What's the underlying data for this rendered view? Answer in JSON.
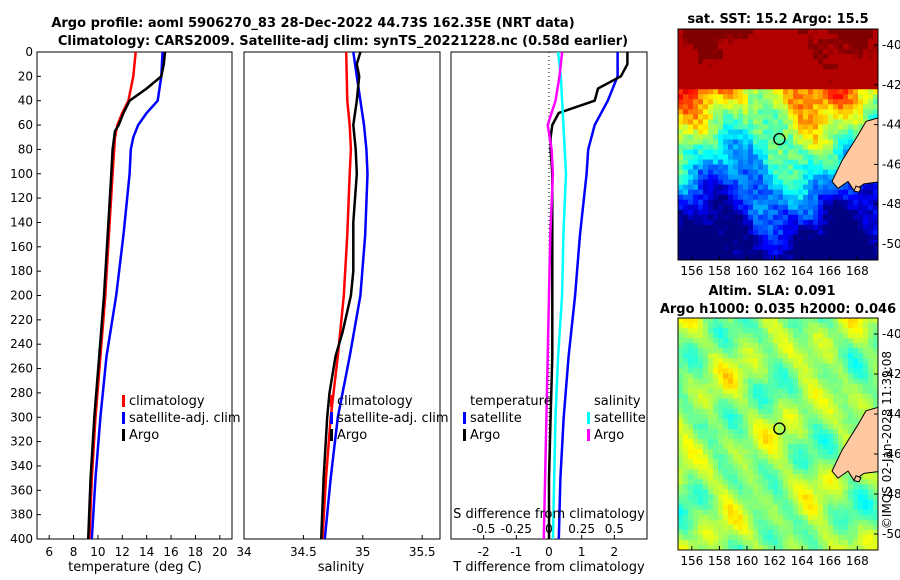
{
  "title": {
    "line1": "Argo profile: aoml 5906270_83 28-Dec-2022 44.73S 162.35E (NRT data)",
    "line2": "Climatology: CARS2009. Satellite-adj clim: synTS_20221228.nc (0.58d earlier)"
  },
  "sst_map_title": "sat. SST: 15.2 Argo: 15.5",
  "sla_map_title_line1": "Altim. SLA: 0.091",
  "sla_map_title_line2": "Argo h1000: 0.035 h2000: 0.046",
  "side_label": "©IMOS 02-Jan-2023 11:39:08",
  "colors": {
    "climatology": "#ff0000",
    "satellite": "#0000ff",
    "argo": "#000000",
    "salinity_satellite": "#00ffff",
    "salinity_argo": "#ff00ff",
    "land": "#ffc8a0"
  },
  "chart_data": [
    {
      "type": "line",
      "name": "temperature-profile",
      "xlabel": "temperature (deg C)",
      "ylabel": "",
      "xlim": [
        5,
        21
      ],
      "ylim": [
        0,
        400
      ],
      "xticks": [
        6,
        8,
        10,
        12,
        14,
        16,
        18,
        20
      ],
      "yticks": [
        0,
        20,
        40,
        60,
        80,
        100,
        120,
        140,
        160,
        180,
        200,
        220,
        240,
        260,
        280,
        300,
        320,
        340,
        360,
        380,
        400
      ],
      "legend": [
        "climatology",
        "satellite-adj. clim",
        "Argo"
      ],
      "series": [
        {
          "name": "climatology",
          "color": "#ff0000",
          "depth": [
            0,
            20,
            40,
            50,
            60,
            70,
            100,
            150,
            200,
            250,
            300,
            350,
            400
          ],
          "values": [
            13.1,
            12.9,
            12.5,
            12.0,
            11.6,
            11.4,
            11.2,
            10.9,
            10.6,
            10.2,
            9.8,
            9.5,
            9.3
          ]
        },
        {
          "name": "satellite-adj. clim",
          "color": "#0000ff",
          "depth": [
            0,
            20,
            40,
            50,
            60,
            70,
            80,
            100,
            150,
            200,
            250,
            300,
            350,
            400
          ],
          "values": [
            15.3,
            15.2,
            14.9,
            14.0,
            13.3,
            12.9,
            12.7,
            12.6,
            12.1,
            11.5,
            10.7,
            10.2,
            9.8,
            9.5
          ]
        },
        {
          "name": "Argo",
          "color": "#000000",
          "depth": [
            0,
            10,
            20,
            30,
            40,
            50,
            60,
            65,
            80,
            100,
            150,
            200,
            250,
            300,
            350,
            400
          ],
          "values": [
            15.5,
            15.4,
            15.2,
            14.0,
            12.6,
            12.1,
            11.7,
            11.4,
            11.2,
            11.1,
            10.8,
            10.5,
            10.1,
            9.7,
            9.4,
            9.2
          ]
        }
      ]
    },
    {
      "type": "line",
      "name": "salinity-profile",
      "xlabel": "salinity",
      "xlim": [
        34.0,
        35.65
      ],
      "ylim": [
        0,
        400
      ],
      "xticks": [
        34,
        34.5,
        35,
        35.5
      ],
      "legend": [
        "climatology",
        "satellite-adj. clim",
        "Argo"
      ],
      "series": [
        {
          "name": "climatology",
          "color": "#ff0000",
          "depth": [
            0,
            40,
            60,
            80,
            100,
            150,
            200,
            250,
            300,
            350,
            400
          ],
          "values": [
            34.86,
            34.87,
            34.89,
            34.9,
            34.89,
            34.87,
            34.84,
            34.79,
            34.73,
            34.69,
            34.66
          ]
        },
        {
          "name": "satellite-adj. clim",
          "color": "#0000ff",
          "depth": [
            0,
            20,
            40,
            60,
            80,
            100,
            150,
            200,
            250,
            300,
            350,
            400
          ],
          "values": [
            34.92,
            34.95,
            34.98,
            35.01,
            35.03,
            35.04,
            35.02,
            34.98,
            34.89,
            34.79,
            34.73,
            34.68
          ]
        },
        {
          "name": "Argo",
          "color": "#000000",
          "depth": [
            0,
            10,
            20,
            40,
            60,
            80,
            100,
            140,
            180,
            200,
            230,
            250,
            280,
            300,
            350,
            400
          ],
          "values": [
            34.98,
            34.95,
            34.97,
            34.95,
            34.92,
            34.94,
            34.95,
            34.92,
            34.92,
            34.9,
            34.83,
            34.77,
            34.72,
            34.7,
            34.67,
            34.65
          ]
        }
      ]
    },
    {
      "type": "line",
      "name": "difference-profile",
      "xlabel": "T difference from climatology",
      "toplabel": "S difference from climatology",
      "xlim": [
        -3,
        3
      ],
      "ylim": [
        0,
        400
      ],
      "xticks": [
        -2,
        -1,
        0,
        1,
        2
      ],
      "top_ticks": [
        "-0.5",
        "-0.25",
        "0",
        "0.25",
        "0.5"
      ],
      "legend_left": [
        "temperature",
        "satellite",
        "Argo"
      ],
      "legend_right": [
        "salinity",
        "satellite",
        "Argo"
      ],
      "series": [
        {
          "name": "T satellite",
          "color": "#0000ff",
          "depth": [
            0,
            20,
            40,
            60,
            80,
            100,
            150,
            200,
            250,
            300,
            350,
            400
          ],
          "values": [
            2.1,
            2.1,
            1.8,
            1.4,
            1.2,
            1.15,
            0.95,
            0.8,
            0.6,
            0.45,
            0.35,
            0.3
          ]
        },
        {
          "name": "T Argo",
          "color": "#000000",
          "depth": [
            0,
            10,
            20,
            30,
            40,
            50,
            60,
            70,
            80,
            100,
            150,
            200,
            250,
            300,
            350,
            400
          ],
          "values": [
            2.4,
            2.4,
            2.2,
            1.5,
            1.4,
            0.3,
            0.1,
            0.05,
            0.05,
            0.1,
            0.1,
            0.1,
            0.1,
            0.05,
            0.0,
            0.0
          ]
        },
        {
          "name": "S satellite",
          "color": "#00ffff",
          "depth": [
            0,
            20,
            40,
            60,
            80,
            100,
            150,
            200,
            250,
            300,
            350,
            400
          ],
          "values": [
            0.07,
            0.09,
            0.1,
            0.11,
            0.12,
            0.13,
            0.11,
            0.1,
            0.07,
            0.05,
            0.04,
            0.03
          ]
        },
        {
          "name": "S Argo",
          "color": "#ff00ff",
          "depth": [
            0,
            20,
            40,
            60,
            80,
            100,
            150,
            200,
            250,
            300,
            350,
            400
          ],
          "values": [
            0.1,
            0.08,
            0.05,
            -0.01,
            0.02,
            0.03,
            0.01,
            0.0,
            -0.01,
            -0.02,
            -0.03,
            -0.04
          ]
        }
      ]
    },
    {
      "type": "heatmap",
      "name": "sst-map",
      "title": "sat. SST: 15.2 Argo: 15.5",
      "xticks": [
        "156",
        "158",
        "160",
        "162",
        "164",
        "166",
        "168"
      ],
      "yticks": [
        "-40",
        "-42",
        "-44",
        "-46",
        "-48",
        "-50"
      ],
      "xlim": [
        155,
        169.5
      ],
      "ylim": [
        -50.8,
        -39.2
      ],
      "argo_location": [
        162.35,
        -44.73
      ]
    },
    {
      "type": "heatmap",
      "name": "sla-map",
      "title": "Altim. SLA: 0.091",
      "xticks": [
        "156",
        "158",
        "160",
        "162",
        "164",
        "166",
        "168"
      ],
      "yticks": [
        "-40",
        "-42",
        "-44",
        "-46",
        "-48",
        "-50"
      ],
      "xlim": [
        155,
        169.5
      ],
      "ylim": [
        -50.8,
        -39.2
      ],
      "argo_location": [
        162.35,
        -44.73
      ]
    }
  ]
}
